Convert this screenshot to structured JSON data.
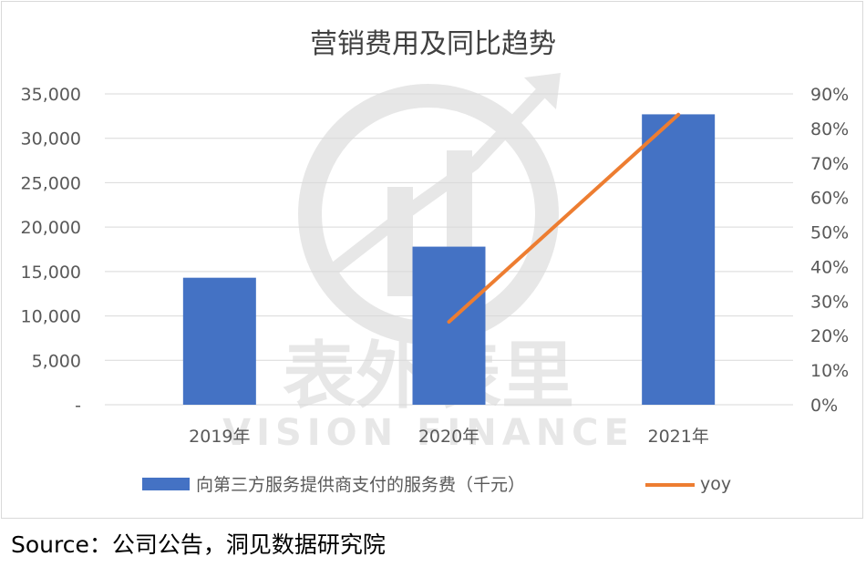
{
  "chart_data": {
    "type": "bar+line",
    "title": "营销费用及同比趋势",
    "categories": [
      "2019年",
      "2020年",
      "2021年"
    ],
    "series": [
      {
        "name": "向第三方服务提供商支付的服务费（千元）",
        "type": "bar",
        "axis": "left",
        "values": [
          14300,
          17800,
          32700
        ],
        "color": "#4472C4"
      },
      {
        "name": "yoy",
        "type": "line",
        "axis": "right",
        "values": [
          null,
          0.24,
          0.84
        ],
        "color": "#ED7D31"
      }
    ],
    "y_left": {
      "ylim": [
        0,
        35000
      ],
      "ticks": [
        0,
        5000,
        10000,
        15000,
        20000,
        25000,
        30000,
        35000
      ],
      "tick_labels": [
        "-",
        "5,000",
        "10,000",
        "15,000",
        "20,000",
        "25,000",
        "30,000",
        "35,000"
      ]
    },
    "y_right": {
      "ylim": [
        0,
        0.9
      ],
      "ticks": [
        0,
        0.1,
        0.2,
        0.3,
        0.4,
        0.5,
        0.6,
        0.7,
        0.8,
        0.9
      ],
      "tick_labels": [
        "0%",
        "10%",
        "20%",
        "30%",
        "40%",
        "50%",
        "60%",
        "70%",
        "80%",
        "90%"
      ]
    },
    "grid": true,
    "legend_position": "bottom",
    "watermark": {
      "text_cn": "表外表里",
      "text_en": "VISION FINANCE"
    }
  },
  "footer": {
    "source": "Source：公司公告，洞见数据研究院"
  }
}
